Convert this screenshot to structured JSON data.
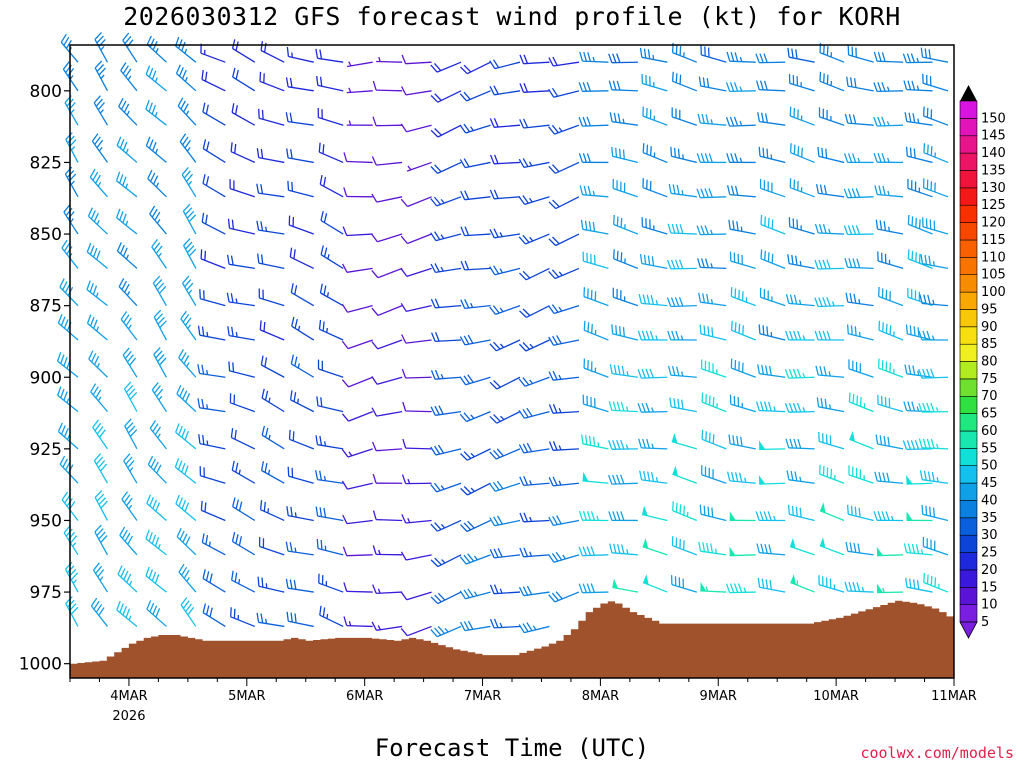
{
  "title": "2026030312 GFS forecast wind profile (kt) for KORH",
  "credit": "coolwx.com/models",
  "credit_color": "#e0204a",
  "terrain_color": "#a0522d",
  "chart_data": {
    "type": "wind-barb-time-height",
    "title": "2026030312 GFS forecast wind profile (kt) for KORH",
    "xlabel": "Forecast Time (UTC)",
    "units": "kt",
    "x_range_hours": [
      0,
      180
    ],
    "x_ticks": [
      {
        "label": "4MAR",
        "sub": "2026",
        "hour": 12
      },
      {
        "label": "5MAR",
        "sub": "",
        "hour": 36
      },
      {
        "label": "6MAR",
        "sub": "",
        "hour": 60
      },
      {
        "label": "7MAR",
        "sub": "",
        "hour": 84
      },
      {
        "label": "8MAR",
        "sub": "",
        "hour": 108
      },
      {
        "label": "9MAR",
        "sub": "",
        "hour": 132
      },
      {
        "label": "10MAR",
        "sub": "",
        "hour": 156
      },
      {
        "label": "11MAR",
        "sub": "",
        "hour": 180
      }
    ],
    "y_range_hpa": [
      1005,
      784
    ],
    "y_ticks": [
      800,
      825,
      850,
      875,
      900,
      925,
      950,
      975,
      1000
    ],
    "levels_hpa": [
      790,
      800,
      812,
      825,
      837,
      850,
      862,
      875,
      887,
      900,
      912,
      925,
      937,
      950,
      962,
      975,
      987
    ],
    "barb_interval_hours": 6,
    "surface_pressure": [
      {
        "hour": 0,
        "hpa": 1000
      },
      {
        "hour": 6,
        "hpa": 999
      },
      {
        "hour": 9,
        "hpa": 996
      },
      {
        "hour": 12,
        "hpa": 993
      },
      {
        "hour": 15,
        "hpa": 991
      },
      {
        "hour": 18,
        "hpa": 990
      },
      {
        "hour": 21,
        "hpa": 990
      },
      {
        "hour": 24,
        "hpa": 991
      },
      {
        "hour": 27,
        "hpa": 992
      },
      {
        "hour": 36,
        "hpa": 992
      },
      {
        "hour": 42,
        "hpa": 992
      },
      {
        "hour": 45,
        "hpa": 991
      },
      {
        "hour": 48,
        "hpa": 992
      },
      {
        "hour": 54,
        "hpa": 991
      },
      {
        "hour": 60,
        "hpa": 991
      },
      {
        "hour": 66,
        "hpa": 992
      },
      {
        "hour": 69,
        "hpa": 991
      },
      {
        "hour": 72,
        "hpa": 992
      },
      {
        "hour": 78,
        "hpa": 995
      },
      {
        "hour": 84,
        "hpa": 997
      },
      {
        "hour": 90,
        "hpa": 997
      },
      {
        "hour": 96,
        "hpa": 994
      },
      {
        "hour": 99,
        "hpa": 992
      },
      {
        "hour": 102,
        "hpa": 988
      },
      {
        "hour": 105,
        "hpa": 982
      },
      {
        "hour": 108,
        "hpa": 979
      },
      {
        "hour": 110,
        "hpa": 978
      },
      {
        "hour": 114,
        "hpa": 982
      },
      {
        "hour": 117,
        "hpa": 984
      },
      {
        "hour": 120,
        "hpa": 986
      },
      {
        "hour": 144,
        "hpa": 986
      },
      {
        "hour": 150,
        "hpa": 986
      },
      {
        "hour": 156,
        "hpa": 984
      },
      {
        "hour": 162,
        "hpa": 981
      },
      {
        "hour": 168,
        "hpa": 978
      },
      {
        "hour": 172,
        "hpa": 979
      },
      {
        "hour": 176,
        "hpa": 981
      },
      {
        "hour": 180,
        "hpa": 985
      }
    ],
    "colorbar": {
      "labels": [
        "5",
        "10",
        "15",
        "20",
        "25",
        "30",
        "35",
        "40",
        "45",
        "50",
        "55",
        "60",
        "65",
        "70",
        "75",
        "80",
        "85",
        "90",
        "95",
        "100",
        "105",
        "110",
        "115",
        "120",
        "125",
        "130",
        "135",
        "140",
        "145",
        "150"
      ],
      "colors": [
        "#7a1fe0",
        "#5b14d6",
        "#3a18dc",
        "#1e28dc",
        "#0c44d8",
        "#0a60dc",
        "#0a80e0",
        "#10a0e8",
        "#14c0ee",
        "#10e0d8",
        "#18e8b0",
        "#20e880",
        "#30e040",
        "#70e030",
        "#b0ec20",
        "#f0f020",
        "#f8e010",
        "#f8c808",
        "#f8a800",
        "#f88c00",
        "#f87400",
        "#f86000",
        "#f84800",
        "#f83000",
        "#f41818",
        "#f0143c",
        "#ec1464",
        "#e8148c",
        "#e014b8",
        "#d814e0"
      ],
      "range": [
        0,
        150
      ]
    },
    "wind_regimes": [
      {
        "hours": [
          0,
          27
        ],
        "dir_deg": 320,
        "speed_kt": [
          30,
          45
        ]
      },
      {
        "hours": [
          27,
          54
        ],
        "dir_deg": 290,
        "speed_kt": [
          15,
          30
        ]
      },
      {
        "hours": [
          54,
          75
        ],
        "dir_deg": 260,
        "speed_kt": [
          5,
          15
        ]
      },
      {
        "hours": [
          75,
          105
        ],
        "dir_deg": 255,
        "speed_kt": [
          15,
          35
        ]
      },
      {
        "hours": [
          105,
          180
        ],
        "dir_deg": 280,
        "speed_kt": [
          25,
          55
        ]
      }
    ]
  }
}
